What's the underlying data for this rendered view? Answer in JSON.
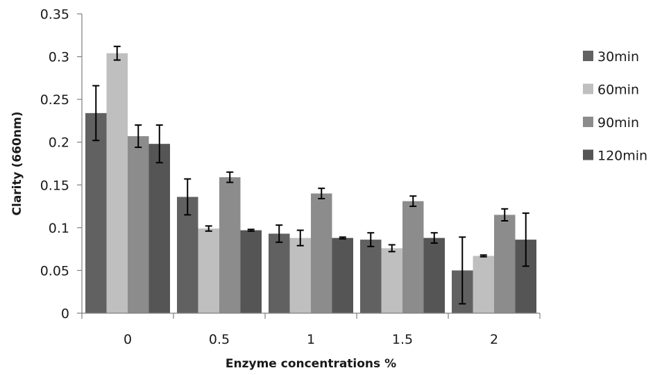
{
  "chart_data": {
    "type": "bar",
    "title": "",
    "xlabel": "Enzyme concentrations %",
    "ylabel": "Clarity (660nm)",
    "categories": [
      "0",
      "0.5",
      "1",
      "1.5",
      "2"
    ],
    "ylim": [
      0,
      0.35
    ],
    "yticks": [
      "0",
      "0.05",
      "0.1",
      "0.15",
      "0.2",
      "0.25",
      "0.3",
      "0.35"
    ],
    "grid": false,
    "legend_position": "right",
    "error_bars": true,
    "series": [
      {
        "name": "30min",
        "color": "#616161",
        "values": [
          0.234,
          0.136,
          0.093,
          0.086,
          0.05
        ],
        "errors": [
          0.032,
          0.021,
          0.01,
          0.008,
          0.039
        ]
      },
      {
        "name": "60min",
        "color": "#bfbfbf",
        "values": [
          0.304,
          0.099,
          0.088,
          0.076,
          0.067
        ],
        "errors": [
          0.008,
          0.003,
          0.009,
          0.004,
          0.001
        ]
      },
      {
        "name": "90min",
        "color": "#8c8c8c",
        "values": [
          0.207,
          0.159,
          0.14,
          0.131,
          0.115
        ],
        "errors": [
          0.013,
          0.006,
          0.006,
          0.006,
          0.007
        ]
      },
      {
        "name": "120min",
        "color": "#555555",
        "values": [
          0.198,
          0.097,
          0.088,
          0.088,
          0.086
        ],
        "errors": [
          0.022,
          0.001,
          0.001,
          0.006,
          0.031
        ]
      }
    ]
  }
}
